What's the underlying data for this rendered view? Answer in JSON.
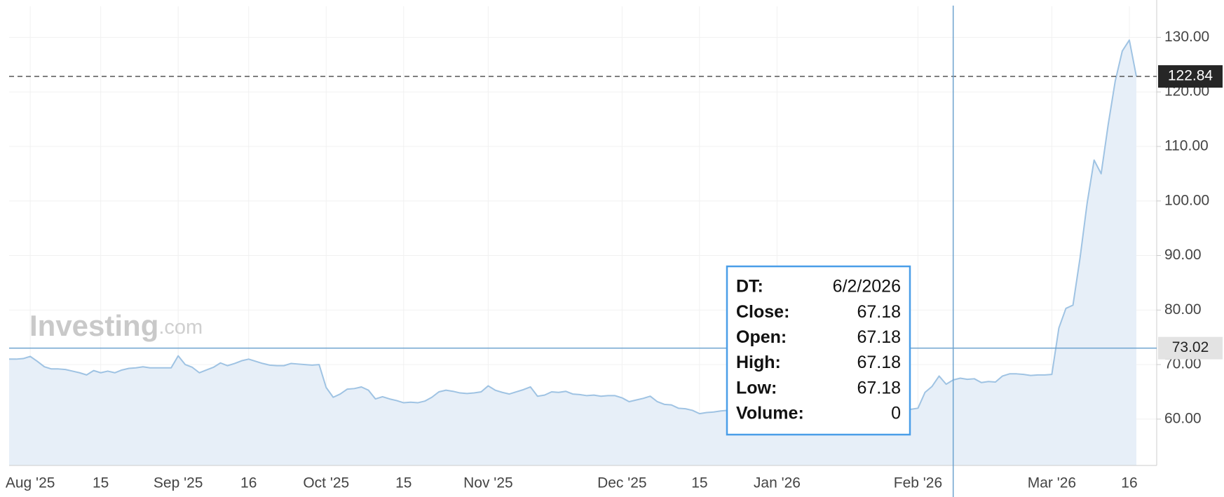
{
  "chart_data": {
    "type": "area",
    "color": "#9fc3e3",
    "fill": "#e7eff8",
    "grid": true,
    "watermark": {
      "brand": "Investing",
      "suffix": ".com"
    },
    "categories": [
      null,
      null,
      null,
      "Aug '25",
      null,
      null,
      null,
      null,
      null,
      null,
      null,
      null,
      null,
      "15",
      null,
      null,
      null,
      null,
      null,
      null,
      null,
      null,
      null,
      null,
      "Sep '25",
      null,
      null,
      null,
      null,
      null,
      null,
      null,
      null,
      null,
      "16",
      null,
      null,
      null,
      null,
      null,
      null,
      null,
      null,
      null,
      null,
      "Oct '25",
      null,
      null,
      null,
      null,
      null,
      null,
      null,
      null,
      null,
      null,
      "15",
      null,
      null,
      null,
      null,
      null,
      null,
      null,
      null,
      null,
      null,
      null,
      "Nov '25",
      null,
      null,
      null,
      null,
      null,
      null,
      null,
      null,
      null,
      null,
      null,
      null,
      null,
      null,
      null,
      null,
      null,
      null,
      "Dec '25",
      null,
      null,
      null,
      null,
      null,
      null,
      null,
      null,
      null,
      null,
      "15",
      null,
      null,
      null,
      null,
      null,
      null,
      null,
      null,
      null,
      null,
      "Jan '26",
      null,
      null,
      null,
      null,
      null,
      null,
      null,
      null,
      null,
      null,
      null,
      null,
      null,
      null,
      null,
      null,
      null,
      null,
      null,
      "Feb '26",
      null,
      null,
      null,
      null,
      null,
      null,
      null,
      null,
      null,
      null,
      null,
      null,
      null,
      null,
      null,
      null,
      null,
      null,
      "Mar '26",
      null,
      null,
      null,
      null,
      null,
      null,
      null,
      null,
      null,
      null,
      "16",
      null
    ],
    "values": [
      71.0,
      71.0,
      71.1,
      71.5,
      70.6,
      69.6,
      69.2,
      69.2,
      69.1,
      68.8,
      68.5,
      68.1,
      68.9,
      68.5,
      68.8,
      68.5,
      69.0,
      69.3,
      69.4,
      69.6,
      69.4,
      69.4,
      69.4,
      69.4,
      71.6,
      70.0,
      69.5,
      68.5,
      69.0,
      69.5,
      70.3,
      69.8,
      70.2,
      70.7,
      71.0,
      70.6,
      70.2,
      69.9,
      69.8,
      69.8,
      70.2,
      70.1,
      70.0,
      69.9,
      70.0,
      65.8,
      64.0,
      64.6,
      65.5,
      65.6,
      65.9,
      65.3,
      63.7,
      64.1,
      63.7,
      63.4,
      63.0,
      63.1,
      63.0,
      63.3,
      64.0,
      65.0,
      65.3,
      65.1,
      64.8,
      64.7,
      64.8,
      65.0,
      66.1,
      65.3,
      64.9,
      64.6,
      65.0,
      65.4,
      65.9,
      64.2,
      64.4,
      65.0,
      64.9,
      65.1,
      64.6,
      64.5,
      64.3,
      64.4,
      64.2,
      64.3,
      64.3,
      63.9,
      63.2,
      63.5,
      63.8,
      64.2,
      63.2,
      62.7,
      62.6,
      62.0,
      61.9,
      61.6,
      61.0,
      61.2,
      61.3,
      61.5,
      61.6,
      61.8,
      61.5,
      61.2,
      61.4,
      61.7,
      62.0,
      61.6,
      61.3,
      61.2,
      61.5,
      61.4,
      61.2,
      61.6,
      61.9,
      62.4,
      61.6,
      61.8,
      61.9,
      61.8,
      61.7,
      61.8,
      61.9,
      61.8,
      61.8,
      61.8,
      61.8,
      62.0,
      64.9,
      66.0,
      67.9,
      66.4,
      67.18,
      67.5,
      67.3,
      67.4,
      66.7,
      66.9,
      66.8,
      67.9,
      68.3,
      68.3,
      68.2,
      68.0,
      68.1,
      68.1,
      68.2,
      76.7,
      80.3,
      80.9,
      89.5,
      99.5,
      107.5,
      105.0,
      114.0,
      122.0,
      127.5,
      129.5,
      122.84
    ],
    "ylim": [
      51.5,
      135.7
    ],
    "yticks": [
      {
        "value": 60,
        "label": "60.00"
      },
      {
        "value": 70,
        "label": "70.00"
      },
      {
        "value": 80,
        "label": "80.00"
      },
      {
        "value": 90,
        "label": "90.00"
      },
      {
        "value": 100,
        "label": "100.00"
      },
      {
        "value": 110,
        "label": "110.00"
      },
      {
        "value": 120,
        "label": "120.00"
      },
      {
        "value": 130,
        "label": "130.00"
      }
    ],
    "last_price": 122.84,
    "crosshair_price": 73.02,
    "tooltip": {
      "dt": {
        "label": "DT:",
        "value": "6/2/2026"
      },
      "close": {
        "label": "Close:",
        "value": 67.18
      },
      "open": {
        "label": "Open:",
        "value": 67.18
      },
      "high": {
        "label": "High:",
        "value": 67.18
      },
      "low": {
        "label": "Low:",
        "value": 67.18
      },
      "volume": {
        "label": "Volume:",
        "value": 0
      }
    }
  }
}
